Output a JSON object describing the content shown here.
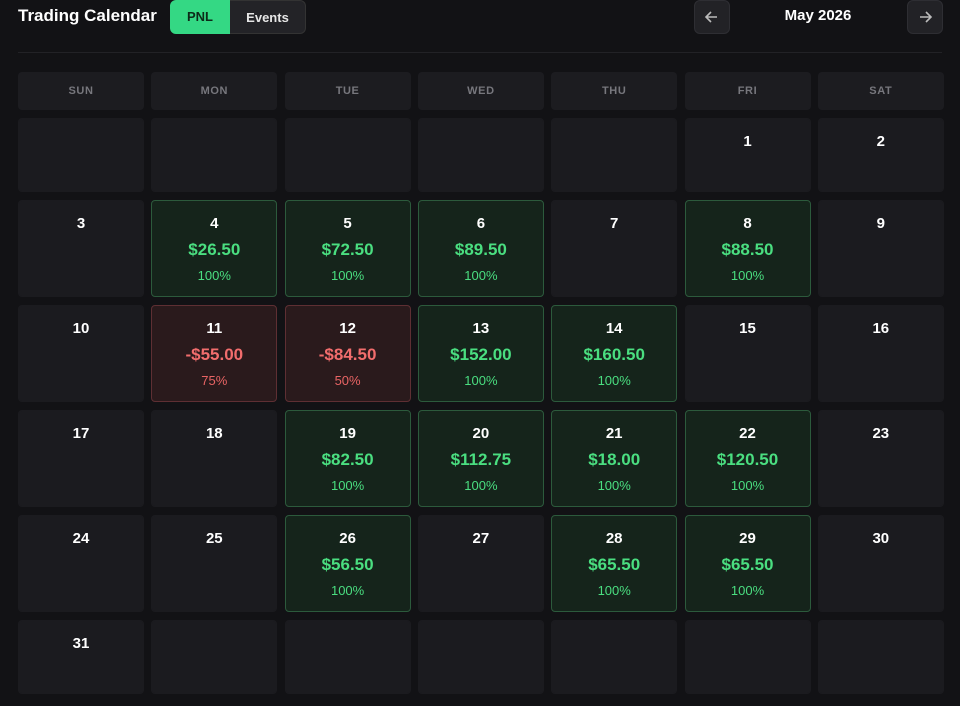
{
  "header": {
    "title": "Trading Calendar",
    "tabs": [
      "PNL",
      "Events"
    ],
    "active_tab": 0,
    "month": "May 2026"
  },
  "calendar": {
    "weekdays": [
      "SUN",
      "MON",
      "TUE",
      "WED",
      "THU",
      "FRI",
      "SAT"
    ],
    "weeks": [
      [
        null,
        null,
        null,
        null,
        null,
        {
          "day": 1
        },
        {
          "day": 2
        }
      ],
      [
        {
          "day": 3
        },
        {
          "day": 4,
          "pnl": "$26.50",
          "win_rate": "100%"
        },
        {
          "day": 5,
          "pnl": "$72.50",
          "win_rate": "100%"
        },
        {
          "day": 6,
          "pnl": "$89.50",
          "win_rate": "100%"
        },
        {
          "day": 7
        },
        {
          "day": 8,
          "pnl": "$88.50",
          "win_rate": "100%"
        },
        {
          "day": 9
        }
      ],
      [
        {
          "day": 10
        },
        {
          "day": 11,
          "pnl": "-$55.00",
          "win_rate": "75%"
        },
        {
          "day": 12,
          "pnl": "-$84.50",
          "win_rate": "50%"
        },
        {
          "day": 13,
          "pnl": "$152.00",
          "win_rate": "100%"
        },
        {
          "day": 14,
          "pnl": "$160.50",
          "win_rate": "100%"
        },
        {
          "day": 15
        },
        {
          "day": 16
        }
      ],
      [
        {
          "day": 17
        },
        {
          "day": 18
        },
        {
          "day": 19,
          "pnl": "$82.50",
          "win_rate": "100%"
        },
        {
          "day": 20,
          "pnl": "$112.75",
          "win_rate": "100%"
        },
        {
          "day": 21,
          "pnl": "$18.00",
          "win_rate": "100%"
        },
        {
          "day": 22,
          "pnl": "$120.50",
          "win_rate": "100%"
        },
        {
          "day": 23
        }
      ],
      [
        {
          "day": 24
        },
        {
          "day": 25
        },
        {
          "day": 26,
          "pnl": "$56.50",
          "win_rate": "100%"
        },
        {
          "day": 27
        },
        {
          "day": 28,
          "pnl": "$65.50",
          "win_rate": "100%"
        },
        {
          "day": 29,
          "pnl": "$65.50",
          "win_rate": "100%"
        },
        {
          "day": 30
        }
      ],
      [
        {
          "day": 31
        },
        null,
        null,
        null,
        null,
        null,
        null
      ]
    ]
  }
}
